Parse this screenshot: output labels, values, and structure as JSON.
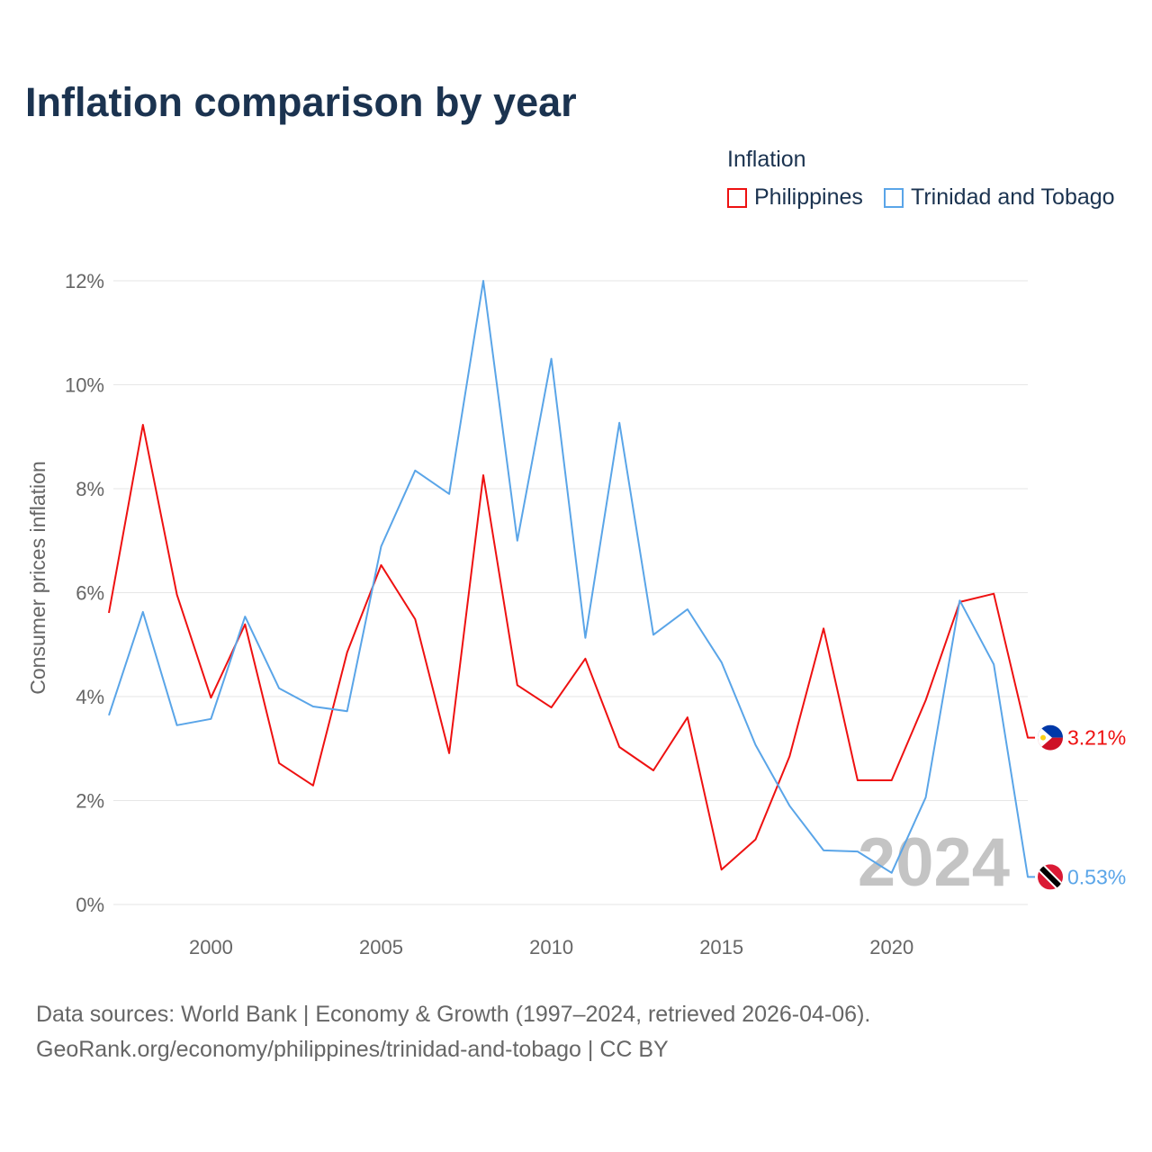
{
  "title": "Inflation comparison by year",
  "legend": {
    "title": "Inflation",
    "items": [
      {
        "name": "Philippines",
        "color": "#ee1111"
      },
      {
        "name": "Trinidad and Tobago",
        "color": "#5aa5e8"
      }
    ]
  },
  "source": {
    "line1": "Data sources: World Bank | Economy & Growth (1997–2024, retrieved 2026-04-06).",
    "line2": "GeoRank.org/economy/philippines/trinidad-and-tobago | CC BY"
  },
  "chart_data": {
    "type": "line",
    "title": "Inflation comparison by year",
    "ylabel": "Consumer prices inflation",
    "xlabel": "",
    "x": [
      1997,
      1998,
      1999,
      2000,
      2001,
      2002,
      2003,
      2004,
      2005,
      2006,
      2007,
      2008,
      2009,
      2010,
      2011,
      2012,
      2013,
      2014,
      2015,
      2016,
      2017,
      2018,
      2019,
      2020,
      2021,
      2022,
      2023,
      2024
    ],
    "xlim": [
      1997,
      2024
    ],
    "ylim": [
      0,
      12
    ],
    "xticks": [
      2000,
      2005,
      2010,
      2015,
      2020
    ],
    "yticks": [
      0,
      2,
      4,
      6,
      8,
      10,
      12
    ],
    "ytick_labels": [
      "0%",
      "2%",
      "4%",
      "6%",
      "8%",
      "10%",
      "12%"
    ],
    "grid": true,
    "legend_position": "top-right",
    "annotation": "2024",
    "series": [
      {
        "name": "Philippines",
        "color": "#ee1111",
        "end_label": "3.21%",
        "values": [
          5.61,
          9.23,
          5.96,
          3.98,
          5.39,
          2.72,
          2.29,
          4.85,
          6.53,
          5.49,
          2.91,
          8.26,
          4.22,
          3.79,
          4.73,
          3.03,
          2.58,
          3.6,
          0.67,
          1.25,
          2.85,
          5.31,
          2.39,
          2.39,
          3.93,
          5.82,
          5.98,
          3.21
        ]
      },
      {
        "name": "Trinidad and Tobago",
        "color": "#5aa5e8",
        "end_label": "0.53%",
        "values": [
          3.64,
          5.63,
          3.45,
          3.57,
          5.54,
          4.16,
          3.81,
          3.72,
          6.89,
          8.35,
          7.9,
          12.0,
          7.0,
          10.5,
          5.13,
          9.27,
          5.19,
          5.68,
          4.66,
          3.07,
          1.9,
          1.04,
          1.02,
          0.61,
          2.06,
          5.85,
          4.62,
          0.53
        ]
      }
    ]
  }
}
